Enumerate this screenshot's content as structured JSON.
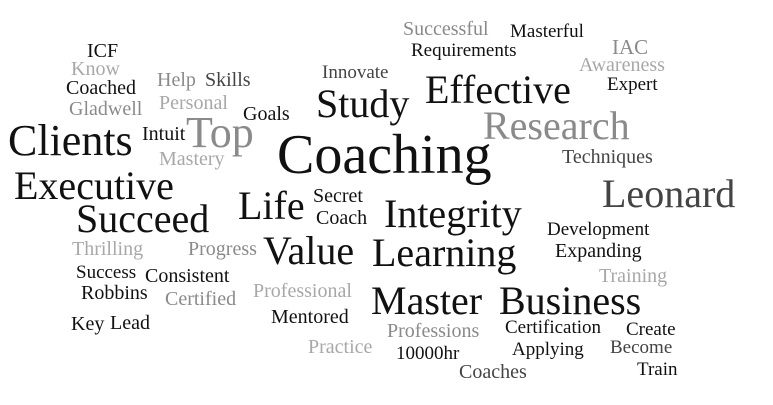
{
  "palette": {
    "dark": "#111111",
    "mid": "#444444",
    "light": "#8a8a8a",
    "pale": "#a8a8a8"
  },
  "words": [
    {
      "text": "Successful",
      "color": "#8a8a8a",
      "font": "serif"
    },
    {
      "text": "Masterful",
      "color": "#111111",
      "font": "serif"
    },
    {
      "text": "Requirements",
      "color": "#111111",
      "font": "serif"
    },
    {
      "text": "IAC",
      "color": "#8a8a8a",
      "font": "serif"
    },
    {
      "text": "Awareness",
      "color": "#a8a8a8",
      "font": "serif"
    },
    {
      "text": "Expert",
      "color": "#111111",
      "font": "serif"
    },
    {
      "text": "ICF",
      "color": "#111111",
      "font": "serif"
    },
    {
      "text": "Know",
      "color": "#a8a8a8",
      "font": "serif"
    },
    {
      "text": "Coached",
      "color": "#111111",
      "font": "serif"
    },
    {
      "text": "Help",
      "color": "#8a8a8a",
      "font": "serif"
    },
    {
      "text": "Skills",
      "color": "#444444",
      "font": "serif"
    },
    {
      "text": "Innovate",
      "color": "#444444",
      "font": "serif"
    },
    {
      "text": "Effective",
      "color": "#111111",
      "font": "serif"
    },
    {
      "text": "Gladwell",
      "color": "#8a8a8a",
      "font": "serif"
    },
    {
      "text": "Personal",
      "color": "#a8a8a8",
      "font": "serif"
    },
    {
      "text": "Goals",
      "color": "#111111",
      "font": "serif"
    },
    {
      "text": "Study",
      "color": "#111111",
      "font": "serif"
    },
    {
      "text": "Research",
      "color": "#8a8a8a",
      "font": "serif"
    },
    {
      "text": "Clients",
      "color": "#111111",
      "font": "serif"
    },
    {
      "text": "Intuit",
      "color": "#111111",
      "font": "serif"
    },
    {
      "text": "Top",
      "color": "#8a8a8a",
      "font": "serif"
    },
    {
      "text": "Coaching",
      "color": "#111111",
      "font": "serif"
    },
    {
      "text": "Techniques",
      "color": "#444444",
      "font": "serif"
    },
    {
      "text": "Mastery",
      "color": "#a8a8a8",
      "font": "serif"
    },
    {
      "text": "Executive",
      "color": "#111111",
      "font": "serif"
    },
    {
      "text": "Leonard",
      "color": "#444444",
      "font": "serif"
    },
    {
      "text": "Life",
      "color": "#111111",
      "font": "serif"
    },
    {
      "text": "Secret",
      "color": "#111111",
      "font": "serif"
    },
    {
      "text": "Coach",
      "color": "#111111",
      "font": "serif"
    },
    {
      "text": "Succeed",
      "color": "#111111",
      "font": "serif"
    },
    {
      "text": "Integrity",
      "color": "#111111",
      "font": "serif"
    },
    {
      "text": "Development",
      "color": "#111111",
      "font": "serif"
    },
    {
      "text": "Thrilling",
      "color": "#a8a8a8",
      "font": "serif"
    },
    {
      "text": "Progress",
      "color": "#8a8a8a",
      "font": "serif"
    },
    {
      "text": "Value",
      "color": "#111111",
      "font": "serif"
    },
    {
      "text": "Learning",
      "color": "#111111",
      "font": "serif"
    },
    {
      "text": "Expanding",
      "color": "#111111",
      "font": "serif"
    },
    {
      "text": "Success",
      "color": "#111111",
      "font": "serif"
    },
    {
      "text": "Consistent",
      "color": "#111111",
      "font": "serif"
    },
    {
      "text": "Training",
      "color": "#a8a8a8",
      "font": "serif"
    },
    {
      "text": "Robbins",
      "color": "#111111",
      "font": "serif"
    },
    {
      "text": "Certified",
      "color": "#8a8a8a",
      "font": "serif"
    },
    {
      "text": "Professional",
      "color": "#a8a8a8",
      "font": "serif"
    },
    {
      "text": "Master",
      "color": "#111111",
      "font": "serif"
    },
    {
      "text": "Business",
      "color": "#111111",
      "font": "serif"
    },
    {
      "text": "Key",
      "color": "#111111",
      "font": "serif"
    },
    {
      "text": "Lead",
      "color": "#111111",
      "font": "serif"
    },
    {
      "text": "Mentored",
      "color": "#111111",
      "font": "serif"
    },
    {
      "text": "Professions",
      "color": "#8a8a8a",
      "font": "serif"
    },
    {
      "text": "Certification",
      "color": "#111111",
      "font": "serif"
    },
    {
      "text": "Create",
      "color": "#111111",
      "font": "serif"
    },
    {
      "text": "Practice",
      "color": "#a8a8a8",
      "font": "serif"
    },
    {
      "text": "10000hr",
      "color": "#111111",
      "font": "serif"
    },
    {
      "text": "Applying",
      "color": "#111111",
      "font": "serif"
    },
    {
      "text": "Become",
      "color": "#444444",
      "font": "serif"
    },
    {
      "text": "Coaches",
      "color": "#444444",
      "font": "serif"
    },
    {
      "text": "Train",
      "color": "#111111",
      "font": "serif"
    }
  ]
}
